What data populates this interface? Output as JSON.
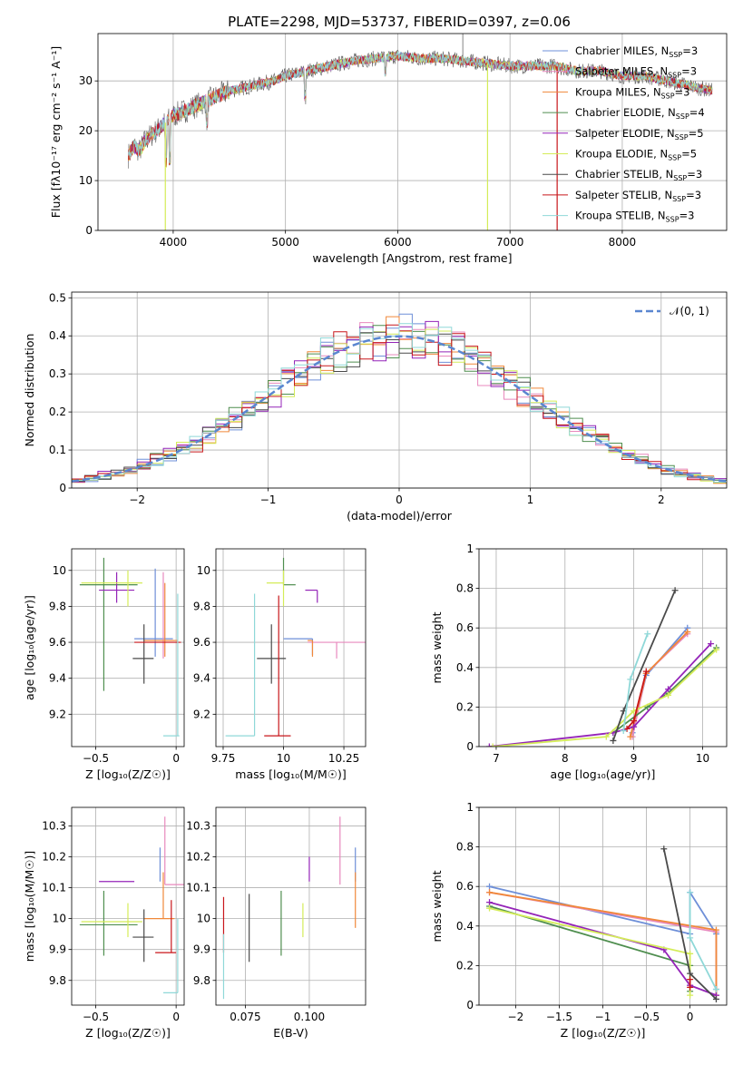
{
  "figure_title": "PLATE=2298, MJD=53737, FIBERID=0397, z=0.06",
  "models": [
    {
      "name": "Chabrier MILES",
      "nssp": "3",
      "color": "#6e8fd8"
    },
    {
      "name": "Salpeter MILES",
      "nssp": "3",
      "color": "#e889bd"
    },
    {
      "name": "Kroupa MILES",
      "nssp": "3",
      "color": "#f0883a"
    },
    {
      "name": "Chabrier ELODIE",
      "nssp": "4",
      "color": "#4f8e4f"
    },
    {
      "name": "Salpeter ELODIE",
      "nssp": "5",
      "color": "#9424b8"
    },
    {
      "name": "Kroupa ELODIE",
      "nssp": "5",
      "color": "#d4ec58"
    },
    {
      "name": "Chabrier STELIB",
      "nssp": "3",
      "color": "#4a4a4a"
    },
    {
      "name": "Salpeter STELIB",
      "nssp": "3",
      "color": "#c8161a"
    },
    {
      "name": "Kroupa STELIB",
      "nssp": "3",
      "color": "#8fd8d8"
    }
  ],
  "chart_data": [
    {
      "id": "spectrum",
      "type": "line",
      "xlabel": "wavelength [Angstrom, rest frame]",
      "ylabel": "Flux [fλ10⁻¹⁷ erg cm⁻² s⁻¹ A⁻¹]",
      "xlim": [
        3330,
        8930
      ],
      "ylim": [
        0,
        39.5
      ],
      "xticks": [
        4000,
        5000,
        6000,
        7000,
        8000
      ],
      "yticks": [
        0,
        10,
        20,
        30
      ],
      "legend": "top-right",
      "x": [
        3600,
        3650,
        3700,
        3750,
        3800,
        3850,
        3900,
        3950,
        4000,
        4100,
        4200,
        4300,
        4400,
        4500,
        4600,
        4700,
        4800,
        4900,
        5000,
        5200,
        5400,
        5600,
        5800,
        6000,
        6200,
        6400,
        6600,
        6800,
        7000,
        7200,
        7400,
        7600,
        7800,
        8000,
        8200,
        8400,
        8600,
        8800
      ],
      "y": [
        15,
        17,
        16,
        18,
        19,
        20,
        21,
        22,
        23,
        24,
        25,
        26,
        27,
        28,
        28.5,
        29,
        29.5,
        30,
        31,
        32,
        33,
        34,
        34.5,
        35,
        34.5,
        34.5,
        34,
        33.5,
        33,
        33,
        33,
        32,
        32,
        31,
        31,
        30,
        29,
        28
      ],
      "dips": [
        {
          "x": 3930,
          "y": 0
        },
        {
          "x": 6800,
          "y": 0
        },
        {
          "x": 7420,
          "y": 0
        }
      ]
    },
    {
      "id": "residuals",
      "type": "line",
      "xlabel": "(data-model)/error",
      "ylabel": "Normed distribution",
      "xlim": [
        -2.5,
        2.5
      ],
      "ylim": [
        0,
        0.515
      ],
      "xticks": [
        -2,
        -1,
        0,
        1,
        2
      ],
      "yticks": [
        0,
        0.1,
        0.2,
        0.3,
        0.4,
        0.5
      ],
      "legend": "top-right",
      "gaussian_label": "𝒩(0, 1)",
      "gaussian_color": "#5a86d0",
      "bin_width": 0.1
    },
    {
      "id": "age-vs-z",
      "type": "scatter",
      "xlabel": "Z [log₁₀(Z/Z☉)]",
      "ylabel": "age  [log₁₀(age/yr)]",
      "xlim": [
        -0.65,
        0.05
      ],
      "ylim": [
        9.02,
        10.12
      ],
      "xticks": [
        -0.5,
        0.0
      ],
      "yticks": [
        9.2,
        9.4,
        9.6,
        9.8,
        10.0
      ],
      "points": [
        {
          "x": -0.13,
          "y": 9.62,
          "xerr": [
            0.13,
            0.11
          ],
          "yerr": [
            0.1,
            0.39
          ],
          "c": "#6e8fd8"
        },
        {
          "x": -0.08,
          "y": 9.61,
          "xerr": [
            0.12,
            0.07
          ],
          "yerr": [
            0.1,
            0.38
          ],
          "c": "#e889bd"
        },
        {
          "x": -0.07,
          "y": 9.61,
          "xerr": [
            0.13,
            0.08
          ],
          "yerr": [
            0.09,
            0.32
          ],
          "c": "#f0883a"
        },
        {
          "x": -0.45,
          "y": 9.92,
          "xerr": [
            0.15,
            0.21
          ],
          "yerr": [
            0.59,
            0.15
          ],
          "c": "#4f8e4f"
        },
        {
          "x": -0.37,
          "y": 9.89,
          "xerr": [
            0.11,
            0.11
          ],
          "yerr": [
            0.07,
            0.1
          ],
          "c": "#9424b8"
        },
        {
          "x": -0.3,
          "y": 9.93,
          "xerr": [
            0.29,
            0.09
          ],
          "yerr": [
            0.13,
            0.07
          ],
          "c": "#d4ec58"
        },
        {
          "x": -0.2,
          "y": 9.51,
          "xerr": [
            0.07,
            0.06
          ],
          "yerr": [
            0.14,
            0.19
          ],
          "c": "#4a4a4a"
        },
        {
          "x": -0.13,
          "y": 9.6,
          "xerr": [
            0.13,
            0.16
          ],
          "yerr": [
            0.0,
            0.0
          ],
          "c": "#c8161a"
        },
        {
          "x": 0.01,
          "y": 9.08,
          "xerr": [
            0.09,
            0.01
          ],
          "yerr": [
            0.0,
            0.79
          ],
          "c": "#8fd8d8"
        }
      ]
    },
    {
      "id": "age-vs-mass",
      "type": "scatter",
      "xlabel": "mass [log₁₀(M/M☉)]",
      "ylabel": "",
      "xlim": [
        9.72,
        10.34
      ],
      "ylim": [
        9.02,
        10.12
      ],
      "xticks": [
        9.75,
        10.0,
        10.25
      ],
      "yticks": [
        9.2,
        9.4,
        9.6,
        9.8,
        10.0
      ],
      "points": [
        {
          "x": 10.12,
          "y": 9.62,
          "xerr": [
            0.12,
            0.0
          ],
          "yerr": [
            0.09,
            0.0
          ],
          "c": "#6e8fd8"
        },
        {
          "x": 10.22,
          "y": 9.6,
          "xerr": [
            0.12,
            0.12
          ],
          "yerr": [
            0.09,
            0.0
          ],
          "c": "#e889bd"
        },
        {
          "x": 10.12,
          "y": 9.61,
          "xerr": [
            0.02,
            0.0
          ],
          "yerr": [
            0.09,
            0.0
          ],
          "c": "#f0883a"
        },
        {
          "x": 10.0,
          "y": 9.92,
          "xerr": [
            0.0,
            0.05
          ],
          "yerr": [
            0.0,
            0.15
          ],
          "c": "#4f8e4f"
        },
        {
          "x": 10.14,
          "y": 9.89,
          "xerr": [
            0.05,
            0.0
          ],
          "yerr": [
            0.07,
            0.0
          ],
          "c": "#9424b8"
        },
        {
          "x": 10.0,
          "y": 9.93,
          "xerr": [
            0.07,
            0.0
          ],
          "yerr": [
            0.13,
            0.07
          ],
          "c": "#d4ec58"
        },
        {
          "x": 9.95,
          "y": 9.51,
          "xerr": [
            0.06,
            0.06
          ],
          "yerr": [
            0.14,
            0.19
          ],
          "c": "#4a4a4a"
        },
        {
          "x": 9.98,
          "y": 9.08,
          "xerr": [
            0.06,
            0.05
          ],
          "yerr": [
            0.0,
            0.78
          ],
          "c": "#c8161a"
        },
        {
          "x": 9.88,
          "y": 9.08,
          "xerr": [
            0.12,
            0.0
          ],
          "yerr": [
            0.0,
            0.79
          ],
          "c": "#8fd8d8"
        }
      ]
    },
    {
      "id": "weight-vs-age",
      "type": "line",
      "xlabel": "age  [log₁₀(age/yr)]",
      "ylabel": "mass weight",
      "xlim": [
        6.75,
        10.35
      ],
      "ylim": [
        0,
        1
      ],
      "xticks": [
        7,
        8,
        9,
        10
      ],
      "yticks": [
        0,
        0.2,
        0.4,
        0.6,
        0.8,
        1.0
      ],
      "series": [
        {
          "x": [
            8.98,
            9.18,
            9.78
          ],
          "y": [
            0.07,
            0.36,
            0.6
          ],
          "c": "#6e8fd8"
        },
        {
          "x": [
            8.98,
            9.18,
            9.78
          ],
          "y": [
            0.05,
            0.37,
            0.57
          ],
          "c": "#e889bd"
        },
        {
          "x": [
            8.95,
            9.18,
            9.78
          ],
          "y": [
            0.05,
            0.37,
            0.58
          ],
          "c": "#f0883a"
        },
        {
          "x": [
            8.7,
            9.2,
            9.5,
            10.2
          ],
          "y": [
            0.07,
            0.2,
            0.27,
            0.5
          ],
          "c": "#4f8e4f"
        },
        {
          "x": [
            6.9,
            8.7,
            9.0,
            9.5,
            10.12
          ],
          "y": [
            0.0,
            0.07,
            0.1,
            0.29,
            0.52
          ],
          "c": "#9424b8"
        },
        {
          "x": [
            6.95,
            8.6,
            9.0,
            9.5,
            10.2
          ],
          "y": [
            0.0,
            0.05,
            0.18,
            0.26,
            0.49
          ],
          "c": "#d4ec58"
        },
        {
          "x": [
            8.7,
            8.85,
            9.6
          ],
          "y": [
            0.03,
            0.18,
            0.79
          ],
          "c": "#4a4a4a"
        },
        {
          "x": [
            8.9,
            9.0,
            9.18
          ],
          "y": [
            0.09,
            0.13,
            0.38
          ],
          "c": "#c8161a"
        },
        {
          "x": [
            8.85,
            8.95,
            9.2
          ],
          "y": [
            0.08,
            0.34,
            0.57
          ],
          "c": "#8fd8d8"
        }
      ]
    },
    {
      "id": "mass-vs-z",
      "type": "scatter",
      "xlabel": "Z [log₁₀(Z/Z☉)]",
      "ylabel": "mass [log₁₀(M/M☉)]",
      "xlim": [
        -0.65,
        0.05
      ],
      "ylim": [
        9.72,
        10.36
      ],
      "xticks": [
        -0.5,
        0.0
      ],
      "yticks": [
        9.8,
        9.9,
        10.0,
        10.1,
        10.2,
        10.3
      ],
      "points": [
        {
          "x": -0.1,
          "y": 10.12,
          "xerr": [
            0.0,
            0.0
          ],
          "yerr": [
            0.0,
            0.11
          ],
          "c": "#6e8fd8"
        },
        {
          "x": -0.07,
          "y": 10.11,
          "xerr": [
            0.0,
            0.12
          ],
          "yerr": [
            0.0,
            0.22
          ],
          "c": "#e889bd"
        },
        {
          "x": -0.08,
          "y": 10.0,
          "xerr": [
            0.12,
            0.07
          ],
          "yerr": [
            0.0,
            0.15
          ],
          "c": "#f0883a"
        },
        {
          "x": -0.45,
          "y": 9.98,
          "xerr": [
            0.15,
            0.21
          ],
          "yerr": [
            0.1,
            0.11
          ],
          "c": "#4f8e4f"
        },
        {
          "x": -0.37,
          "y": 10.12,
          "xerr": [
            0.11,
            0.11
          ],
          "yerr": [
            0.0,
            0.0
          ],
          "c": "#9424b8"
        },
        {
          "x": -0.3,
          "y": 9.99,
          "xerr": [
            0.29,
            0.09
          ],
          "yerr": [
            0.05,
            0.06
          ],
          "c": "#d4ec58"
        },
        {
          "x": -0.2,
          "y": 9.94,
          "xerr": [
            0.07,
            0.06
          ],
          "yerr": [
            0.08,
            0.09
          ],
          "c": "#4a4a4a"
        },
        {
          "x": -0.03,
          "y": 9.89,
          "xerr": [
            0.1,
            0.03
          ],
          "yerr": [
            0.0,
            0.17
          ],
          "c": "#c8161a"
        },
        {
          "x": 0.01,
          "y": 9.76,
          "xerr": [
            0.09,
            0.0
          ],
          "yerr": [
            0.0,
            0.24
          ],
          "c": "#8fd8d8"
        }
      ]
    },
    {
      "id": "mass-vs-ebv",
      "type": "scatter",
      "xlabel": "E(B-V)",
      "ylabel": "",
      "xlim": [
        0.0635,
        0.122
      ],
      "ylim": [
        9.72,
        10.36
      ],
      "xticks": [
        0.075,
        0.1
      ],
      "xticklabels": [
        "0.075",
        "0.100"
      ],
      "yticks": [
        9.8,
        9.9,
        10.0,
        10.1,
        10.2,
        10.3
      ],
      "points": [
        {
          "x": 0.118,
          "y": 10.12,
          "xerr": [
            0,
            0
          ],
          "yerr": [
            0.0,
            0.11
          ],
          "c": "#6e8fd8"
        },
        {
          "x": 0.112,
          "y": 10.11,
          "xerr": [
            0,
            0
          ],
          "yerr": [
            0.0,
            0.22
          ],
          "c": "#e889bd"
        },
        {
          "x": 0.118,
          "y": 10.06,
          "xerr": [
            0,
            0
          ],
          "yerr": [
            0.09,
            0.09
          ],
          "c": "#f0883a"
        },
        {
          "x": 0.089,
          "y": 9.98,
          "xerr": [
            0,
            0
          ],
          "yerr": [
            0.1,
            0.11
          ],
          "c": "#4f8e4f"
        },
        {
          "x": 0.1,
          "y": 10.12,
          "xerr": [
            0,
            0
          ],
          "yerr": [
            0.0,
            0.08
          ],
          "c": "#9424b8"
        },
        {
          "x": 0.0975,
          "y": 9.99,
          "xerr": [
            0,
            0
          ],
          "yerr": [
            0.05,
            0.06
          ],
          "c": "#d4ec58"
        },
        {
          "x": 0.0765,
          "y": 9.94,
          "xerr": [
            0,
            0
          ],
          "yerr": [
            0.08,
            0.14
          ],
          "c": "#4a4a4a"
        },
        {
          "x": 0.0665,
          "y": 9.97,
          "xerr": [
            0,
            0
          ],
          "yerr": [
            0.08,
            0.1
          ],
          "c": "#c8161a"
        },
        {
          "x": 0.0665,
          "y": 9.85,
          "xerr": [
            0,
            0
          ],
          "yerr": [
            0.11,
            0.1
          ],
          "c": "#8fd8d8"
        }
      ]
    },
    {
      "id": "weight-vs-z",
      "type": "line",
      "xlabel": "Z [log₁₀(Z/Z☉)]",
      "ylabel": "mass weight",
      "xlim": [
        -2.42,
        0.42
      ],
      "ylim": [
        0,
        1
      ],
      "xticks": [
        -2.0,
        -1.5,
        -1.0,
        -0.5,
        0.0
      ],
      "yticks": [
        0,
        0.2,
        0.4,
        0.6,
        0.8,
        1.0
      ],
      "series": [
        {
          "x": [
            -2.3,
            0.0,
            0.0,
            0.3,
            0.3
          ],
          "y": [
            0.6,
            0.36,
            0.57,
            0.36,
            0.08
          ],
          "c": "#6e8fd8"
        },
        {
          "x": [
            -2.3,
            0.3,
            0.3
          ],
          "y": [
            0.57,
            0.37,
            0.05
          ],
          "c": "#e889bd"
        },
        {
          "x": [
            -2.3,
            0.3,
            0.3
          ],
          "y": [
            0.57,
            0.38,
            0.05
          ],
          "c": "#f0883a"
        },
        {
          "x": [
            -2.3,
            0.0,
            0.0
          ],
          "y": [
            0.5,
            0.2,
            0.07
          ],
          "c": "#4f8e4f"
        },
        {
          "x": [
            -2.3,
            -0.3,
            0.0,
            0.3
          ],
          "y": [
            0.52,
            0.28,
            0.1,
            0.05
          ],
          "c": "#9424b8"
        },
        {
          "x": [
            -2.3,
            0.0,
            0.0
          ],
          "y": [
            0.49,
            0.26,
            0.05
          ],
          "c": "#d4ec58"
        },
        {
          "x": [
            -0.3,
            0.0,
            0.3
          ],
          "y": [
            0.79,
            0.16,
            0.03
          ],
          "c": "#4a4a4a"
        },
        {
          "x": [
            0.0,
            0.0
          ],
          "y": [
            0.13,
            0.09
          ],
          "c": "#c8161a"
        },
        {
          "x": [
            0.0,
            0.0,
            0.3
          ],
          "y": [
            0.57,
            0.34,
            0.08
          ],
          "c": "#8fd8d8"
        }
      ]
    }
  ]
}
